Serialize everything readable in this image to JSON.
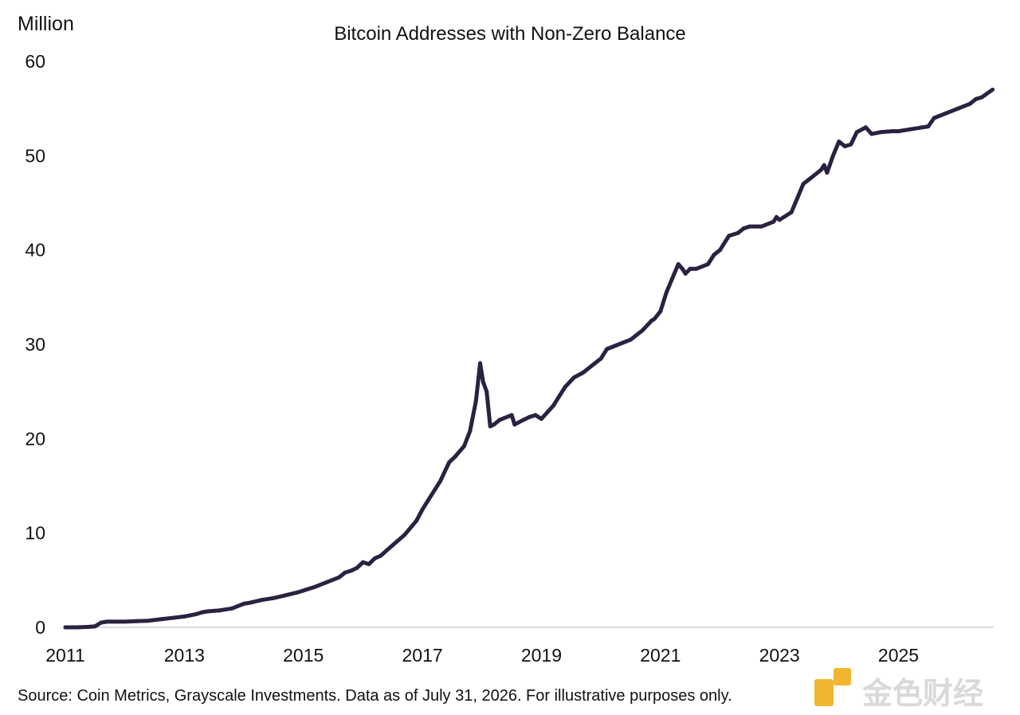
{
  "chart_data": {
    "type": "line",
    "title": "Bitcoin Addresses with Non-Zero Balance",
    "ylabel": "Million",
    "xlabel": "",
    "source": "Source: Coin Metrics, Grayscale Investments. Data as of July 31, 2026. For illustrative purposes only.",
    "ylim": [
      0,
      60
    ],
    "yticks": [
      0,
      10,
      20,
      30,
      40,
      50,
      60
    ],
    "xlim": [
      2011,
      2026.6
    ],
    "xticks": [
      "2011",
      "2013",
      "2015",
      "2017",
      "2019",
      "2021",
      "2023",
      "2025"
    ],
    "grid": false,
    "line_color": "#2b2140",
    "series": [
      {
        "x": [
          2011.0,
          2011.2,
          2011.4,
          2011.5,
          2011.6,
          2011.7,
          2011.9,
          2012.0,
          2012.2,
          2012.4,
          2012.6,
          2012.8,
          2013.0,
          2013.2,
          2013.3,
          2013.4,
          2013.6,
          2013.8,
          2014.0,
          2014.1,
          2014.3,
          2014.5,
          2014.7,
          2014.9,
          2015.0,
          2015.2,
          2015.4,
          2015.6,
          2015.7,
          2015.8,
          2015.9,
          2016.0,
          2016.1,
          2016.2,
          2016.3,
          2016.5,
          2016.7,
          2016.9,
          2017.0,
          2017.1,
          2017.3,
          2017.45,
          2017.55,
          2017.7,
          2017.8,
          2017.9,
          2017.97,
          2018.02,
          2018.08,
          2018.14,
          2018.2,
          2018.3,
          2018.5,
          2018.55,
          2018.7,
          2018.8,
          2018.9,
          2019.0,
          2019.1,
          2019.2,
          2019.3,
          2019.4,
          2019.55,
          2019.7,
          2019.9,
          2020.0,
          2020.1,
          2020.3,
          2020.5,
          2020.7,
          2020.85,
          2020.9,
          2021.0,
          2021.1,
          2021.2,
          2021.3,
          2021.37,
          2021.42,
          2021.5,
          2021.6,
          2021.8,
          2021.9,
          2022.0,
          2022.15,
          2022.3,
          2022.4,
          2022.5,
          2022.7,
          2022.9,
          2022.95,
          2023.0,
          2023.2,
          2023.3,
          2023.4,
          2023.5,
          2023.7,
          2023.75,
          2023.8,
          2023.9,
          2024.0,
          2024.1,
          2024.2,
          2024.3,
          2024.45,
          2024.55,
          2024.7,
          2024.9,
          2025.0,
          2025.2,
          2025.4,
          2025.5,
          2025.6,
          2025.8,
          2026.0,
          2026.2,
          2026.3,
          2026.4,
          2026.58
        ],
        "y": [
          0.0,
          0.0,
          0.05,
          0.1,
          0.5,
          0.6,
          0.6,
          0.6,
          0.65,
          0.7,
          0.85,
          1.0,
          1.15,
          1.4,
          1.6,
          1.7,
          1.8,
          2.0,
          2.5,
          2.6,
          2.9,
          3.1,
          3.4,
          3.7,
          3.9,
          4.3,
          4.8,
          5.3,
          5.8,
          6.0,
          6.3,
          6.9,
          6.7,
          7.3,
          7.6,
          8.7,
          9.8,
          11.3,
          12.5,
          13.5,
          15.5,
          17.5,
          18.1,
          19.2,
          20.8,
          24.0,
          28.0,
          26.0,
          25.0,
          21.3,
          21.5,
          22.0,
          22.5,
          21.5,
          22.0,
          22.3,
          22.5,
          22.1,
          22.8,
          23.5,
          24.5,
          25.5,
          26.5,
          27.0,
          28.0,
          28.5,
          29.5,
          30.0,
          30.5,
          31.5,
          32.5,
          32.7,
          33.5,
          35.5,
          37.0,
          38.5,
          38.0,
          37.5,
          38.0,
          38.0,
          38.5,
          39.5,
          40.0,
          41.5,
          41.8,
          42.3,
          42.5,
          42.5,
          43.0,
          43.5,
          43.2,
          44.0,
          45.5,
          47.0,
          47.5,
          48.5,
          49.0,
          48.2,
          50.0,
          51.5,
          51.0,
          51.2,
          52.5,
          53.0,
          52.3,
          52.5,
          52.6,
          52.6,
          52.8,
          53.0,
          53.1,
          54.0,
          54.5,
          55.0,
          55.5,
          56.0,
          56.2,
          57.0
        ]
      }
    ]
  },
  "watermark": {
    "text": "金色财经",
    "logo_color": "#f2b530",
    "text_color": "#d9d9d9"
  }
}
